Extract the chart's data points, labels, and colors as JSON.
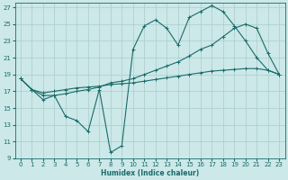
{
  "xlabel": "Humidex (Indice chaleur)",
  "bg_color": "#cce8e8",
  "grid_color": "#aacccc",
  "line_color": "#1a6b6b",
  "xlim": [
    -0.5,
    23.5
  ],
  "ylim": [
    9,
    27.5
  ],
  "yticks": [
    9,
    11,
    13,
    15,
    17,
    19,
    21,
    23,
    25,
    27
  ],
  "xticks": [
    0,
    1,
    2,
    3,
    4,
    5,
    6,
    7,
    8,
    9,
    10,
    11,
    12,
    13,
    14,
    15,
    16,
    17,
    18,
    19,
    20,
    21,
    22,
    23
  ],
  "line1_x": [
    0,
    1,
    2,
    3,
    4,
    5,
    6,
    7,
    8,
    9,
    10,
    11,
    12,
    13,
    14,
    15,
    16,
    17,
    18,
    19,
    20,
    21,
    22,
    23
  ],
  "line1_y": [
    18.5,
    17.2,
    16.0,
    16.5,
    14.0,
    13.5,
    12.2,
    17.2,
    9.7,
    10.5,
    22.0,
    24.8,
    25.5,
    24.5,
    22.5,
    25.8,
    26.5,
    27.2,
    26.5,
    24.8,
    23.0,
    21.0,
    19.5,
    19.0
  ],
  "line2_x": [
    0,
    1,
    2,
    3,
    4,
    5,
    6,
    7,
    8,
    9,
    10,
    11,
    12,
    13,
    14,
    15,
    16,
    17,
    18,
    19,
    20,
    21,
    22,
    23
  ],
  "line2_y": [
    18.5,
    17.2,
    16.5,
    16.5,
    16.7,
    17.0,
    17.2,
    17.5,
    18.0,
    18.2,
    18.5,
    19.0,
    19.5,
    20.0,
    20.5,
    21.2,
    22.0,
    22.5,
    23.5,
    24.5,
    25.0,
    24.5,
    21.5,
    19.0
  ],
  "line3_x": [
    0,
    1,
    2,
    3,
    4,
    5,
    6,
    7,
    8,
    9,
    10,
    11,
    12,
    13,
    14,
    15,
    16,
    17,
    18,
    19,
    20,
    21,
    22,
    23
  ],
  "line3_y": [
    18.5,
    17.2,
    16.8,
    17.0,
    17.2,
    17.4,
    17.5,
    17.6,
    17.8,
    17.9,
    18.0,
    18.2,
    18.4,
    18.6,
    18.8,
    19.0,
    19.2,
    19.4,
    19.5,
    19.6,
    19.7,
    19.7,
    19.5,
    19.0
  ]
}
